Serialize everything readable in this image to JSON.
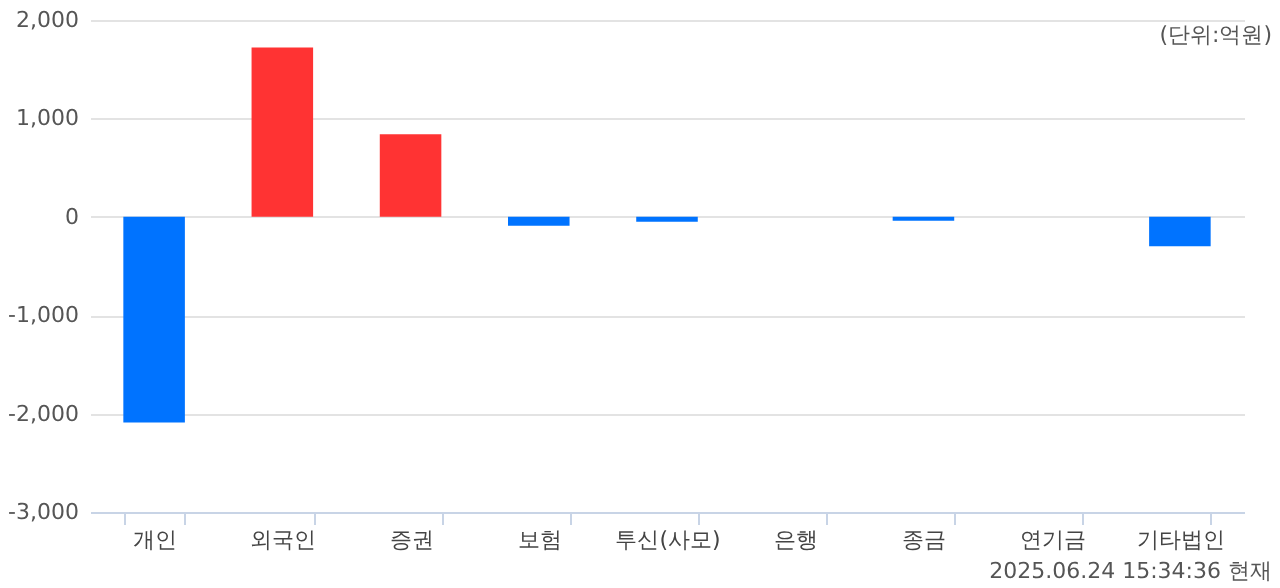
{
  "chart_data": {
    "type": "bar",
    "categories": [
      "개인",
      "외국인",
      "증권",
      "보험",
      "투신(사모)",
      "은행",
      "종금",
      "연기금",
      "기타법인"
    ],
    "values": [
      -2090,
      1720,
      840,
      -90,
      -50,
      0,
      -40,
      0,
      -300
    ],
    "colors": [
      "#0073ff",
      "#ff3333",
      "#ff3333",
      "#0073ff",
      "#0073ff",
      "#0073ff",
      "#0073ff",
      "#0073ff",
      "#0073ff"
    ],
    "ylim": [
      -3000,
      2000
    ],
    "yticks": [
      {
        "value": -3000,
        "label": "-3,000"
      },
      {
        "value": -2000,
        "label": "-2,000"
      },
      {
        "value": -1000,
        "label": "-1,000"
      },
      0,
      {
        "value": 1000,
        "label": "1,000"
      },
      {
        "value": 2000,
        "label": "2,000"
      }
    ],
    "grid": "y",
    "annotations": [
      "(단위:억원)",
      "2025.06.24 15:34:36 현재"
    ]
  }
}
